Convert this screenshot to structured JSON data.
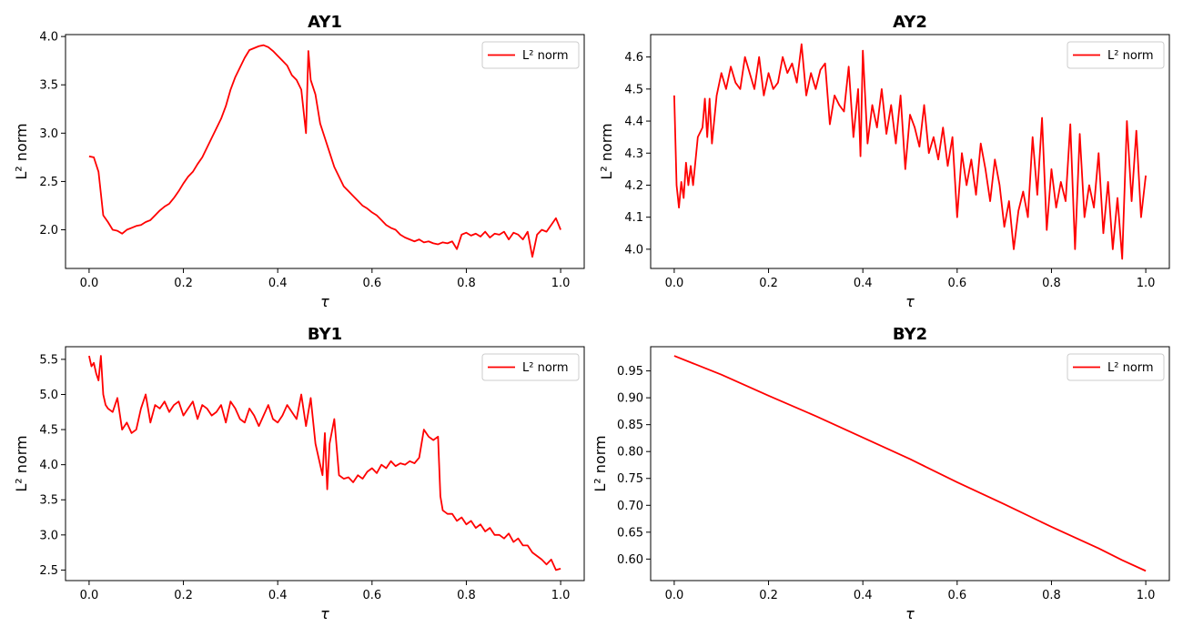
{
  "chart_data": [
    {
      "type": "line",
      "title": "AY1",
      "xlabel": "τ",
      "ylabel": "L² norm",
      "xlim": [
        -0.05,
        1.05
      ],
      "ylim": [
        1.6,
        4.02
      ],
      "xticks": [
        0.0,
        0.2,
        0.4,
        0.6,
        0.8,
        1.0
      ],
      "xtick_labels": [
        "0.0",
        "0.2",
        "0.4",
        "0.6",
        "0.8",
        "1.0"
      ],
      "yticks": [
        2.0,
        2.5,
        3.0,
        3.5,
        4.0
      ],
      "ytick_labels": [
        "2.0",
        "2.5",
        "3.0",
        "3.5",
        "4.0"
      ],
      "legend": {
        "position": "top-right",
        "entries": [
          "L² norm"
        ]
      },
      "grid": false,
      "series": [
        {
          "color": "#ff0000",
          "x": [
            0.0,
            0.01,
            0.02,
            0.03,
            0.04,
            0.05,
            0.06,
            0.07,
            0.08,
            0.09,
            0.1,
            0.11,
            0.12,
            0.13,
            0.14,
            0.15,
            0.16,
            0.17,
            0.18,
            0.19,
            0.2,
            0.21,
            0.22,
            0.23,
            0.24,
            0.25,
            0.26,
            0.27,
            0.28,
            0.29,
            0.3,
            0.31,
            0.32,
            0.33,
            0.34,
            0.35,
            0.36,
            0.37,
            0.38,
            0.39,
            0.4,
            0.41,
            0.42,
            0.43,
            0.44,
            0.45,
            0.46,
            0.465,
            0.47,
            0.48,
            0.49,
            0.5,
            0.51,
            0.52,
            0.53,
            0.54,
            0.55,
            0.56,
            0.57,
            0.58,
            0.59,
            0.6,
            0.61,
            0.62,
            0.63,
            0.64,
            0.65,
            0.66,
            0.67,
            0.68,
            0.69,
            0.7,
            0.71,
            0.72,
            0.73,
            0.74,
            0.75,
            0.76,
            0.77,
            0.78,
            0.79,
            0.8,
            0.81,
            0.82,
            0.83,
            0.84,
            0.85,
            0.86,
            0.87,
            0.88,
            0.89,
            0.9,
            0.91,
            0.92,
            0.93,
            0.94,
            0.95,
            0.96,
            0.97,
            0.98,
            0.99,
            1.0
          ],
          "y": [
            2.76,
            2.75,
            2.6,
            2.15,
            2.08,
            2.0,
            1.99,
            1.96,
            2.0,
            2.02,
            2.04,
            2.05,
            2.08,
            2.1,
            2.15,
            2.2,
            2.24,
            2.27,
            2.33,
            2.4,
            2.48,
            2.55,
            2.6,
            2.68,
            2.75,
            2.85,
            2.95,
            3.05,
            3.15,
            3.28,
            3.45,
            3.58,
            3.68,
            3.78,
            3.86,
            3.88,
            3.9,
            3.91,
            3.89,
            3.85,
            3.8,
            3.75,
            3.7,
            3.6,
            3.55,
            3.45,
            3.0,
            3.85,
            3.55,
            3.4,
            3.1,
            2.95,
            2.8,
            2.65,
            2.55,
            2.45,
            2.4,
            2.35,
            2.3,
            2.25,
            2.22,
            2.18,
            2.15,
            2.1,
            2.05,
            2.02,
            2.0,
            1.95,
            1.92,
            1.9,
            1.88,
            1.9,
            1.87,
            1.88,
            1.86,
            1.85,
            1.87,
            1.86,
            1.88,
            1.8,
            1.95,
            1.97,
            1.94,
            1.96,
            1.93,
            1.98,
            1.92,
            1.96,
            1.95,
            1.98,
            1.9,
            1.97,
            1.95,
            1.9,
            1.98,
            1.72,
            1.95,
            2.0,
            1.98,
            2.05,
            2.12,
            2.0
          ]
        }
      ]
    },
    {
      "type": "line",
      "title": "AY2",
      "xlabel": "τ",
      "ylabel": "L² norm",
      "xlim": [
        -0.05,
        1.05
      ],
      "ylim": [
        3.94,
        4.67
      ],
      "xticks": [
        0.0,
        0.2,
        0.4,
        0.6,
        0.8,
        1.0
      ],
      "xtick_labels": [
        "0.0",
        "0.2",
        "0.4",
        "0.6",
        "0.8",
        "1.0"
      ],
      "yticks": [
        4.0,
        4.1,
        4.2,
        4.3,
        4.4,
        4.5,
        4.6
      ],
      "ytick_labels": [
        "4.0",
        "4.1",
        "4.2",
        "4.3",
        "4.4",
        "4.5",
        "4.6"
      ],
      "legend": {
        "position": "top-right",
        "entries": [
          "L² norm"
        ]
      },
      "grid": false,
      "series": [
        {
          "color": "#ff0000",
          "x": [
            0.0,
            0.005,
            0.01,
            0.015,
            0.02,
            0.025,
            0.03,
            0.035,
            0.04,
            0.05,
            0.06,
            0.065,
            0.07,
            0.075,
            0.08,
            0.09,
            0.1,
            0.11,
            0.12,
            0.13,
            0.14,
            0.15,
            0.16,
            0.17,
            0.18,
            0.19,
            0.2,
            0.21,
            0.22,
            0.23,
            0.24,
            0.25,
            0.26,
            0.27,
            0.28,
            0.29,
            0.3,
            0.31,
            0.32,
            0.33,
            0.34,
            0.35,
            0.36,
            0.37,
            0.38,
            0.39,
            0.395,
            0.4,
            0.41,
            0.42,
            0.43,
            0.44,
            0.45,
            0.46,
            0.47,
            0.48,
            0.49,
            0.5,
            0.51,
            0.52,
            0.53,
            0.54,
            0.55,
            0.56,
            0.57,
            0.58,
            0.59,
            0.6,
            0.61,
            0.62,
            0.63,
            0.64,
            0.65,
            0.66,
            0.67,
            0.68,
            0.69,
            0.7,
            0.71,
            0.72,
            0.73,
            0.74,
            0.75,
            0.76,
            0.77,
            0.78,
            0.79,
            0.8,
            0.81,
            0.82,
            0.83,
            0.84,
            0.85,
            0.86,
            0.87,
            0.88,
            0.89,
            0.9,
            0.91,
            0.92,
            0.93,
            0.94,
            0.95,
            0.96,
            0.97,
            0.98,
            0.99,
            1.0
          ],
          "y": [
            4.48,
            4.2,
            4.13,
            4.21,
            4.16,
            4.27,
            4.2,
            4.26,
            4.2,
            4.35,
            4.38,
            4.47,
            4.35,
            4.47,
            4.33,
            4.48,
            4.55,
            4.5,
            4.57,
            4.52,
            4.5,
            4.6,
            4.55,
            4.5,
            4.6,
            4.48,
            4.55,
            4.5,
            4.52,
            4.6,
            4.55,
            4.58,
            4.52,
            4.64,
            4.48,
            4.55,
            4.5,
            4.56,
            4.58,
            4.39,
            4.48,
            4.45,
            4.43,
            4.57,
            4.35,
            4.5,
            4.29,
            4.62,
            4.33,
            4.45,
            4.38,
            4.5,
            4.36,
            4.45,
            4.33,
            4.48,
            4.25,
            4.42,
            4.38,
            4.32,
            4.45,
            4.3,
            4.35,
            4.28,
            4.38,
            4.26,
            4.35,
            4.1,
            4.3,
            4.2,
            4.28,
            4.17,
            4.33,
            4.25,
            4.15,
            4.28,
            4.2,
            4.07,
            4.15,
            4.0,
            4.12,
            4.18,
            4.1,
            4.35,
            4.17,
            4.41,
            4.06,
            4.25,
            4.13,
            4.21,
            4.15,
            4.39,
            4.0,
            4.36,
            4.1,
            4.2,
            4.13,
            4.3,
            4.05,
            4.21,
            4.0,
            4.16,
            3.97,
            4.4,
            4.15,
            4.37,
            4.1,
            4.23
          ]
        }
      ]
    },
    {
      "type": "line",
      "title": "BY1",
      "xlabel": "τ",
      "ylabel": "L² norm",
      "xlim": [
        -0.05,
        1.05
      ],
      "ylim": [
        2.35,
        5.68
      ],
      "xticks": [
        0.0,
        0.2,
        0.4,
        0.6,
        0.8,
        1.0
      ],
      "xtick_labels": [
        "0.0",
        "0.2",
        "0.4",
        "0.6",
        "0.8",
        "1.0"
      ],
      "yticks": [
        2.5,
        3.0,
        3.5,
        4.0,
        4.5,
        5.0,
        5.5
      ],
      "ytick_labels": [
        "2.5",
        "3.0",
        "3.5",
        "4.0",
        "4.5",
        "5.0",
        "5.5"
      ],
      "legend": {
        "position": "top-right",
        "entries": [
          "L² norm"
        ]
      },
      "grid": false,
      "series": [
        {
          "color": "#ff0000",
          "x": [
            0.0,
            0.005,
            0.01,
            0.015,
            0.02,
            0.025,
            0.03,
            0.035,
            0.04,
            0.05,
            0.06,
            0.07,
            0.08,
            0.09,
            0.1,
            0.11,
            0.12,
            0.13,
            0.14,
            0.15,
            0.16,
            0.17,
            0.18,
            0.19,
            0.2,
            0.21,
            0.22,
            0.23,
            0.24,
            0.25,
            0.26,
            0.27,
            0.28,
            0.29,
            0.3,
            0.31,
            0.32,
            0.33,
            0.34,
            0.35,
            0.36,
            0.37,
            0.38,
            0.39,
            0.4,
            0.41,
            0.42,
            0.43,
            0.44,
            0.45,
            0.46,
            0.47,
            0.48,
            0.49,
            0.495,
            0.5,
            0.505,
            0.51,
            0.52,
            0.53,
            0.54,
            0.55,
            0.56,
            0.57,
            0.58,
            0.59,
            0.6,
            0.61,
            0.62,
            0.63,
            0.64,
            0.65,
            0.66,
            0.67,
            0.68,
            0.69,
            0.7,
            0.71,
            0.72,
            0.73,
            0.74,
            0.745,
            0.75,
            0.76,
            0.77,
            0.78,
            0.79,
            0.8,
            0.81,
            0.82,
            0.83,
            0.84,
            0.85,
            0.86,
            0.87,
            0.88,
            0.89,
            0.9,
            0.91,
            0.92,
            0.93,
            0.94,
            0.95,
            0.96,
            0.97,
            0.98,
            0.99,
            1.0
          ],
          "y": [
            5.55,
            5.4,
            5.45,
            5.3,
            5.2,
            5.55,
            5.0,
            4.85,
            4.8,
            4.75,
            4.95,
            4.5,
            4.6,
            4.45,
            4.5,
            4.8,
            5.0,
            4.6,
            4.85,
            4.8,
            4.9,
            4.75,
            4.85,
            4.9,
            4.7,
            4.8,
            4.9,
            4.65,
            4.85,
            4.8,
            4.7,
            4.75,
            4.85,
            4.6,
            4.9,
            4.8,
            4.65,
            4.6,
            4.8,
            4.7,
            4.55,
            4.7,
            4.85,
            4.65,
            4.6,
            4.7,
            4.85,
            4.75,
            4.65,
            5.0,
            4.55,
            4.95,
            4.3,
            4.0,
            3.85,
            4.45,
            3.65,
            4.3,
            4.65,
            3.85,
            3.8,
            3.82,
            3.75,
            3.85,
            3.8,
            3.9,
            3.95,
            3.88,
            4.0,
            3.95,
            4.05,
            3.98,
            4.02,
            4.0,
            4.05,
            4.02,
            4.1,
            4.5,
            4.4,
            4.35,
            4.4,
            3.55,
            3.35,
            3.3,
            3.3,
            3.2,
            3.25,
            3.15,
            3.2,
            3.1,
            3.15,
            3.05,
            3.1,
            3.0,
            3.0,
            2.95,
            3.02,
            2.9,
            2.95,
            2.85,
            2.85,
            2.75,
            2.7,
            2.65,
            2.58,
            2.65,
            2.5,
            2.52
          ]
        }
      ]
    },
    {
      "type": "line",
      "title": "BY2",
      "xlabel": "τ",
      "ylabel": "L² norm",
      "xlim": [
        -0.05,
        1.05
      ],
      "ylim": [
        0.56,
        0.995
      ],
      "xticks": [
        0.0,
        0.2,
        0.4,
        0.6,
        0.8,
        1.0
      ],
      "xtick_labels": [
        "0.0",
        "0.2",
        "0.4",
        "0.6",
        "0.8",
        "1.0"
      ],
      "yticks": [
        0.6,
        0.65,
        0.7,
        0.75,
        0.8,
        0.85,
        0.9,
        0.95
      ],
      "ytick_labels": [
        "0.60",
        "0.65",
        "0.70",
        "0.75",
        "0.80",
        "0.85",
        "0.90",
        "0.95"
      ],
      "legend": {
        "position": "top-right",
        "entries": [
          "L² norm"
        ]
      },
      "grid": false,
      "series": [
        {
          "color": "#ff0000",
          "x": [
            0.0,
            0.1,
            0.2,
            0.3,
            0.4,
            0.5,
            0.6,
            0.7,
            0.8,
            0.9,
            0.95,
            1.0
          ],
          "y": [
            0.978,
            0.943,
            0.904,
            0.866,
            0.826,
            0.786,
            0.743,
            0.702,
            0.66,
            0.62,
            0.598,
            0.578
          ]
        }
      ]
    }
  ]
}
